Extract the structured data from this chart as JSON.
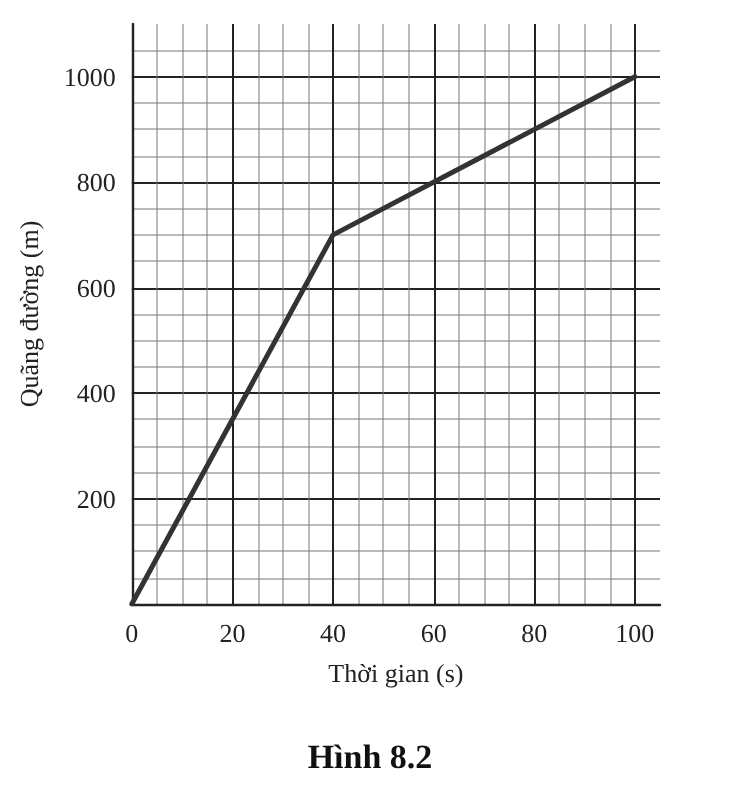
{
  "chart_data": {
    "type": "line",
    "title": "Hình 8.2",
    "xlabel": "Thời gian (s)",
    "ylabel": "Quãng đường (m)",
    "x": [
      0,
      40,
      100
    ],
    "series": [
      {
        "color": "#333333",
        "values": [
          0,
          700,
          1000
        ]
      }
    ],
    "xlim": [
      0,
      105
    ],
    "ylim": [
      0,
      1100
    ],
    "xticks": [
      0,
      20,
      40,
      60,
      80,
      100
    ],
    "yticks": [
      200,
      400,
      600,
      800,
      1000
    ],
    "grid": true,
    "marker": "none",
    "line_style": "solid"
  }
}
